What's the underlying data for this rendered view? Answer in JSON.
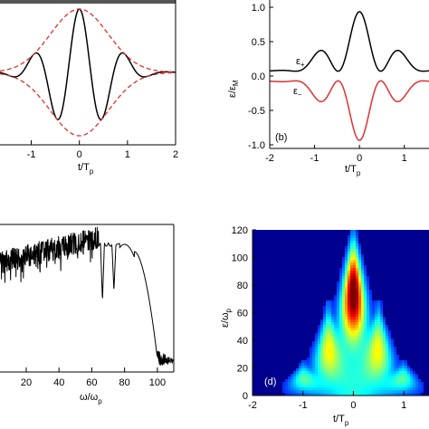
{
  "chart_data": [
    {
      "panel": "a",
      "type": "line",
      "xlabel": "t/T",
      "xlabel_sub": "p",
      "ylabel": "",
      "xlim": [
        -2,
        2
      ],
      "ylim": [
        -1.05,
        1.05
      ],
      "xticks": [
        "-1",
        "0",
        "1",
        "2"
      ],
      "xtick_values": [
        -1,
        0,
        1,
        2
      ],
      "yticks": [],
      "series": [
        {
          "style": "solid",
          "color": "#000000",
          "kind": "field",
          "sigma": 0.6,
          "period": 0.95
        },
        {
          "style": "dashed",
          "color": "#e03030",
          "kind": "envelope-upper",
          "sigma": 0.6
        },
        {
          "style": "dashed",
          "color": "#e03030",
          "kind": "envelope-lower",
          "sigma": 0.6
        }
      ]
    },
    {
      "panel": "b",
      "label": "(b)",
      "type": "line",
      "xlabel": "t/T",
      "xlabel_sub": "p",
      "ylabel": "ε/ε",
      "ylabel_sub": "M",
      "xlim": [
        -2,
        2
      ],
      "ylim": [
        -1.05,
        1.05
      ],
      "xticks": [
        "-2",
        "-1",
        "0",
        "1",
        "2"
      ],
      "xtick_values": [
        -2,
        -1,
        0,
        1,
        2
      ],
      "yticks": [
        "1.0",
        "0.5",
        "0.0",
        "-0.5",
        "-1.0"
      ],
      "ytick_values": [
        1.0,
        0.5,
        0.0,
        -0.5,
        -1.0
      ],
      "series": [
        {
          "name": "ε",
          "name_sub": "+",
          "color": "#000000",
          "offset": 0.07
        },
        {
          "name": "ε",
          "name_sub": "−",
          "color": "#e03030",
          "offset": -0.07
        }
      ]
    },
    {
      "panel": "c",
      "type": "line",
      "xlabel": "ω/ω",
      "xlabel_sub": "p",
      "xlim": [
        0,
        110
      ],
      "xticks": [
        "20",
        "40",
        "60",
        "80",
        "100"
      ],
      "xtick_values": [
        20,
        40,
        60,
        80,
        100
      ],
      "yticks": []
    },
    {
      "panel": "d",
      "label": "(d)",
      "type": "heatmap",
      "xlabel": "t/T",
      "xlabel_sub": "p",
      "ylabel": "ε/ω",
      "ylabel_sub": "p",
      "xlim": [
        -2,
        1.5
      ],
      "ylim": [
        0,
        120
      ],
      "xticks": [
        "-2",
        "-1",
        "0",
        "1"
      ],
      "xtick_values": [
        -2,
        -1,
        0,
        1
      ],
      "yticks": [
        "0",
        "20",
        "40",
        "60",
        "80",
        "100",
        "120"
      ],
      "ytick_values": [
        0,
        20,
        40,
        60,
        80,
        100,
        120
      ],
      "peaks": [
        {
          "t": 0,
          "e_max": 118,
          "amp": 1.0
        },
        {
          "t": -0.5,
          "e_max": 60,
          "amp": 0.55
        },
        {
          "t": 0.5,
          "e_max": 60,
          "amp": 0.55
        },
        {
          "t": -1.0,
          "e_max": 22,
          "amp": 0.35
        },
        {
          "t": 1.0,
          "e_max": 22,
          "amp": 0.35
        }
      ]
    }
  ]
}
